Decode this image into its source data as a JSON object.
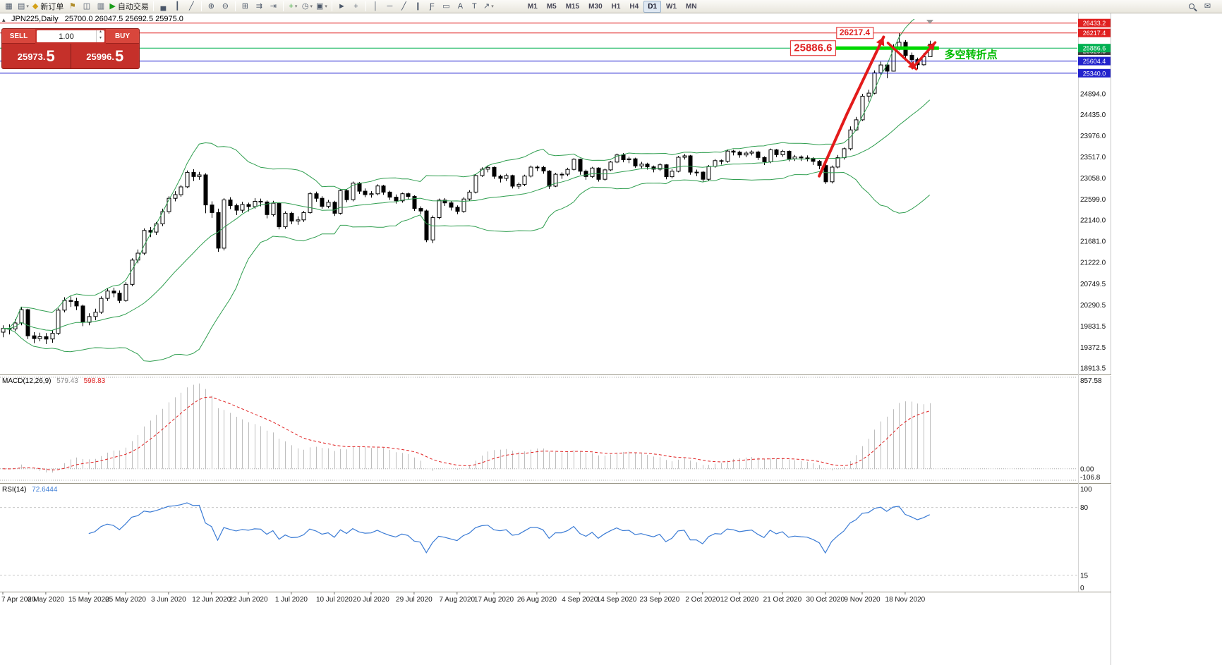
{
  "toolbar": {
    "icons": [
      {
        "name": "new-chart-icon"
      },
      {
        "name": "profiles-icon",
        "dropdown": true
      },
      {
        "name": "new-order-button",
        "label": "新订单"
      },
      {
        "name": "alerts-icon"
      },
      {
        "name": "market-watch-icon"
      },
      {
        "name": "data-window-icon"
      },
      {
        "name": "autotrade-button",
        "label": "自动交易"
      },
      {
        "name": "sep"
      },
      {
        "name": "bar-chart-icon"
      },
      {
        "name": "candlestick-chart-icon"
      },
      {
        "name": "line-chart-icon"
      },
      {
        "name": "sep"
      },
      {
        "name": "zoom-in-icon"
      },
      {
        "name": "zoom-out-icon"
      },
      {
        "name": "sep"
      },
      {
        "name": "tile-windows-icon"
      },
      {
        "name": "auto-scroll-icon"
      },
      {
        "name": "chart-shift-icon"
      },
      {
        "name": "sep"
      },
      {
        "name": "indicators-icon",
        "dropdown": true
      },
      {
        "name": "periods-icon",
        "dropdown": true
      },
      {
        "name": "templates-icon",
        "dropdown": true
      },
      {
        "name": "sep"
      },
      {
        "name": "cursor-icon"
      },
      {
        "name": "crosshair-icon"
      },
      {
        "name": "sep"
      },
      {
        "name": "vertical-line-icon"
      },
      {
        "name": "horizontal-line-icon"
      },
      {
        "name": "trendline-icon"
      },
      {
        "name": "channel-icon"
      },
      {
        "name": "fibonacci-icon"
      },
      {
        "name": "shapes-icon"
      },
      {
        "name": "text-icon"
      },
      {
        "name": "text-label-icon"
      },
      {
        "name": "arrows-icon",
        "dropdown": true
      }
    ],
    "right_icons": [
      "search-icon",
      "community-icon"
    ],
    "timeframes": [
      "M1",
      "M5",
      "M15",
      "M30",
      "H1",
      "H4",
      "D1",
      "W1",
      "MN"
    ],
    "active_timeframe": "D1"
  },
  "trade_panel": {
    "sell_label": "SELL",
    "buy_label": "BUY",
    "volume": "1.00",
    "sell_price": "25973.5",
    "buy_price": "25996.5"
  },
  "chart_data": {
    "type": "candlestick",
    "symbol_period": "JPN225,Daily",
    "ohlc_line": "25700.0 26047.5 25692.5 25975.0",
    "ylim": [
      18840,
      26520
    ],
    "price_axis_labels": [
      "24894.0",
      "24435.0",
      "23976.0",
      "23517.0",
      "23058.0",
      "22599.0",
      "22140.0",
      "21681.0",
      "21222.0",
      "20749.5",
      "20290.5",
      "19831.5",
      "19372.5",
      "18913.5"
    ],
    "x_axis": [
      {
        "label": "7 Apr 2020",
        "i": 0
      },
      {
        "label": "6 May 2020",
        "i": 7
      },
      {
        "label": "15 May 2020",
        "i": 14
      },
      {
        "label": "25 May 2020",
        "i": 20
      },
      {
        "label": "3 Jun 2020",
        "i": 27
      },
      {
        "label": "12 Jun 2020",
        "i": 34
      },
      {
        "label": "22 Jun 2020",
        "i": 40
      },
      {
        "label": "1 Jul 2020",
        "i": 47
      },
      {
        "label": "10 Jul 2020",
        "i": 54
      },
      {
        "label": "20 Jul 2020",
        "i": 60
      },
      {
        "label": "29 Jul 2020",
        "i": 67
      },
      {
        "label": "7 Aug 2020",
        "i": 74
      },
      {
        "label": "17 Aug 2020",
        "i": 80
      },
      {
        "label": "26 Aug 2020",
        "i": 87
      },
      {
        "label": "4 Sep 2020",
        "i": 94
      },
      {
        "label": "14 Sep 2020",
        "i": 100
      },
      {
        "label": "23 Sep 2020",
        "i": 107
      },
      {
        "label": "2 Oct 2020",
        "i": 114
      },
      {
        "label": "12 Oct 2020",
        "i": 120
      },
      {
        "label": "21 Oct 2020",
        "i": 127
      },
      {
        "label": "30 Oct 2020",
        "i": 134
      },
      {
        "label": "9 Nov 2020",
        "i": 140
      },
      {
        "label": "18 Nov 2020",
        "i": 147
      }
    ],
    "candles": [
      [
        19700,
        19850,
        19590,
        19780
      ],
      [
        19780,
        19870,
        19650,
        19770
      ],
      [
        19770,
        19980,
        19720,
        19900
      ],
      [
        19900,
        20250,
        19850,
        20190
      ],
      [
        20190,
        20210,
        19550,
        19620
      ],
      [
        19620,
        19700,
        19460,
        19560
      ],
      [
        19560,
        19690,
        19500,
        19600
      ],
      [
        19600,
        19680,
        19440,
        19550
      ],
      [
        19550,
        19740,
        19470,
        19675
      ],
      [
        19675,
        20220,
        19640,
        20180
      ],
      [
        20180,
        20460,
        20130,
        20390
      ],
      [
        20390,
        20480,
        20250,
        20370
      ],
      [
        20370,
        20450,
        20180,
        20270
      ],
      [
        20270,
        20300,
        19830,
        19915
      ],
      [
        19915,
        20110,
        19850,
        20040
      ],
      [
        20040,
        20210,
        19960,
        20135
      ],
      [
        20135,
        20480,
        20100,
        20435
      ],
      [
        20435,
        20650,
        20380,
        20595
      ],
      [
        20595,
        20670,
        20460,
        20550
      ],
      [
        20550,
        20610,
        20330,
        20390
      ],
      [
        20390,
        20790,
        20360,
        20740
      ],
      [
        20740,
        21310,
        20700,
        21270
      ],
      [
        21270,
        21500,
        21200,
        21420
      ],
      [
        21420,
        21960,
        21380,
        21915
      ],
      [
        21915,
        21990,
        21770,
        21880
      ],
      [
        21880,
        22100,
        21820,
        22060
      ],
      [
        22060,
        22390,
        22010,
        22325
      ],
      [
        22325,
        22660,
        22280,
        22615
      ],
      [
        22615,
        22770,
        22550,
        22695
      ],
      [
        22695,
        22905,
        22650,
        22865
      ],
      [
        22865,
        23220,
        22840,
        23180
      ],
      [
        23180,
        23250,
        22990,
        23090
      ],
      [
        23090,
        23190,
        23020,
        23125
      ],
      [
        23125,
        23160,
        22290,
        22470
      ],
      [
        22470,
        22550,
        22190,
        22305
      ],
      [
        22305,
        22390,
        21450,
        21530
      ],
      [
        21530,
        22620,
        21480,
        22580
      ],
      [
        22580,
        22640,
        22380,
        22455
      ],
      [
        22455,
        22500,
        22250,
        22355
      ],
      [
        22355,
        22540,
        22300,
        22480
      ],
      [
        22480,
        22520,
        22330,
        22435
      ],
      [
        22435,
        22620,
        22390,
        22550
      ],
      [
        22550,
        22610,
        22440,
        22535
      ],
      [
        22535,
        22570,
        22180,
        22260
      ],
      [
        22260,
        22560,
        22220,
        22510
      ],
      [
        22510,
        22530,
        21940,
        21995
      ],
      [
        21995,
        22330,
        21950,
        22290
      ],
      [
        22290,
        22320,
        22050,
        22120
      ],
      [
        22120,
        22220,
        22040,
        22145
      ],
      [
        22145,
        22340,
        22100,
        22305
      ],
      [
        22305,
        22750,
        22280,
        22715
      ],
      [
        22715,
        22760,
        22540,
        22615
      ],
      [
        22615,
        22660,
        22390,
        22440
      ],
      [
        22440,
        22580,
        22400,
        22530
      ],
      [
        22530,
        22560,
        22230,
        22290
      ],
      [
        22290,
        22820,
        22260,
        22785
      ],
      [
        22785,
        22810,
        22530,
        22585
      ],
      [
        22585,
        22980,
        22550,
        22945
      ],
      [
        22945,
        22970,
        22710,
        22770
      ],
      [
        22770,
        22830,
        22640,
        22695
      ],
      [
        22695,
        22770,
        22630,
        22715
      ],
      [
        22715,
        22920,
        22680,
        22885
      ],
      [
        22885,
        22910,
        22690,
        22750
      ],
      [
        22750,
        22780,
        22580,
        22640
      ],
      [
        22640,
        22700,
        22500,
        22560
      ],
      [
        22560,
        22740,
        22520,
        22715
      ],
      [
        22715,
        22740,
        22590,
        22655
      ],
      [
        22655,
        22680,
        22340,
        22395
      ],
      [
        22395,
        22440,
        22270,
        22340
      ],
      [
        22340,
        22370,
        21660,
        21710
      ],
      [
        21710,
        22240,
        21640,
        22195
      ],
      [
        22195,
        22610,
        22160,
        22575
      ],
      [
        22575,
        22620,
        22450,
        22515
      ],
      [
        22515,
        22560,
        22350,
        22420
      ],
      [
        22420,
        22460,
        22270,
        22330
      ],
      [
        22330,
        22640,
        22300,
        22600
      ],
      [
        22600,
        22790,
        22560,
        22750
      ],
      [
        22750,
        23140,
        22720,
        23110
      ],
      [
        23110,
        23290,
        23080,
        23250
      ],
      [
        23250,
        23330,
        23180,
        23290
      ],
      [
        23290,
        23310,
        23040,
        23095
      ],
      [
        23095,
        23130,
        22960,
        23050
      ],
      [
        23050,
        23150,
        22990,
        23110
      ],
      [
        23110,
        23130,
        22830,
        22880
      ],
      [
        22880,
        22960,
        22820,
        22920
      ],
      [
        22920,
        23130,
        22880,
        23100
      ],
      [
        23100,
        23330,
        23070,
        23295
      ],
      [
        23295,
        23330,
        23210,
        23290
      ],
      [
        23290,
        23320,
        23150,
        23210
      ],
      [
        23210,
        23230,
        22820,
        22880
      ],
      [
        22880,
        23170,
        22860,
        23140
      ],
      [
        23140,
        23180,
        23040,
        23140
      ],
      [
        23140,
        23280,
        23100,
        23245
      ],
      [
        23245,
        23490,
        23220,
        23465
      ],
      [
        23465,
        23480,
        23130,
        23205
      ],
      [
        23205,
        23240,
        23020,
        23090
      ],
      [
        23090,
        23300,
        23060,
        23275
      ],
      [
        23275,
        23290,
        22980,
        23030
      ],
      [
        23030,
        23260,
        23000,
        23235
      ],
      [
        23235,
        23430,
        23210,
        23405
      ],
      [
        23405,
        23590,
        23380,
        23560
      ],
      [
        23560,
        23600,
        23400,
        23455
      ],
      [
        23455,
        23520,
        23380,
        23475
      ],
      [
        23475,
        23500,
        23280,
        23320
      ],
      [
        23320,
        23410,
        23270,
        23360
      ],
      [
        23360,
        23390,
        23240,
        23300
      ],
      [
        23300,
        23330,
        23180,
        23250
      ],
      [
        23250,
        23380,
        23210,
        23345
      ],
      [
        23345,
        23360,
        23030,
        23085
      ],
      [
        23085,
        23250,
        23050,
        23205
      ],
      [
        23205,
        23540,
        23180,
        23510
      ],
      [
        23510,
        23580,
        23460,
        23540
      ],
      [
        23540,
        23560,
        23130,
        23185
      ],
      [
        23185,
        23240,
        23100,
        23185
      ],
      [
        23185,
        23210,
        22970,
        23030
      ],
      [
        23030,
        23340,
        23000,
        23310
      ],
      [
        23310,
        23470,
        23280,
        23435
      ],
      [
        23435,
        23460,
        23350,
        23420
      ],
      [
        23420,
        23680,
        23390,
        23645
      ],
      [
        23645,
        23670,
        23550,
        23620
      ],
      [
        23620,
        23650,
        23500,
        23560
      ],
      [
        23560,
        23640,
        23510,
        23600
      ],
      [
        23600,
        23660,
        23550,
        23625
      ],
      [
        23625,
        23650,
        23450,
        23505
      ],
      [
        23505,
        23530,
        23340,
        23410
      ],
      [
        23410,
        23700,
        23380,
        23670
      ],
      [
        23670,
        23690,
        23510,
        23565
      ],
      [
        23565,
        23670,
        23520,
        23640
      ],
      [
        23640,
        23660,
        23420,
        23475
      ],
      [
        23475,
        23560,
        23430,
        23515
      ],
      [
        23515,
        23550,
        23430,
        23495
      ],
      [
        23495,
        23550,
        23420,
        23485
      ],
      [
        23485,
        23510,
        23340,
        23420
      ],
      [
        23420,
        23450,
        23250,
        23330
      ],
      [
        23330,
        23360,
        22930,
        22975
      ],
      [
        22975,
        23330,
        22940,
        23295
      ],
      [
        23295,
        23560,
        23270,
        23500
      ],
      [
        23500,
        23720,
        23460,
        23695
      ],
      [
        23695,
        24180,
        23660,
        24105
      ],
      [
        24105,
        24390,
        24080,
        24325
      ],
      [
        24325,
        24890,
        24300,
        24840
      ],
      [
        24840,
        24980,
        24720,
        24905
      ],
      [
        24905,
        25400,
        24880,
        25350
      ],
      [
        25350,
        25590,
        25300,
        25520
      ],
      [
        25520,
        25560,
        25230,
        25385
      ],
      [
        25385,
        25970,
        25380,
        25905
      ],
      [
        25905,
        26220,
        25840,
        26015
      ],
      [
        26015,
        26060,
        25640,
        25730
      ],
      [
        25730,
        25790,
        25460,
        25635
      ],
      [
        25635,
        25680,
        25425,
        25525
      ],
      [
        25525,
        25780,
        25500,
        25700
      ],
      [
        25700,
        26047.5,
        25692.5,
        25975
      ]
    ],
    "bollinger": {
      "period": 20,
      "deviation": 2,
      "color": "#2f9e4f"
    },
    "levels": [
      {
        "price": 26433.2,
        "color": "#e02020",
        "width": 1
      },
      {
        "price": 26217.4,
        "color": "#e02020",
        "width": 1
      },
      {
        "price": 25886.6,
        "color": "#00b050",
        "width": 1
      },
      {
        "price": 25604.4,
        "color": "#1515cd",
        "width": 1
      },
      {
        "price": 25340.0,
        "color": "#1515cd",
        "width": 1
      }
    ],
    "segments": [
      {
        "price": 25886.6,
        "i1": 135.5,
        "i2": 152.5,
        "color": "#00d800",
        "width": 5
      }
    ],
    "tags": [
      {
        "label": "26433.2",
        "price": 26433.2,
        "bg": "#e02020"
      },
      {
        "label": "26217.4",
        "price": 26217.4,
        "bg": "#e02020"
      },
      {
        "label": "25829.5",
        "price": 25829.5,
        "bg": "#404040"
      },
      {
        "label": "25886.6",
        "price": 25886.6,
        "bg": "#00b050"
      },
      {
        "label": "25604.4",
        "price": 25604.4,
        "bg": "#2222cc"
      },
      {
        "label": "25340.0",
        "price": 25340.0,
        "bg": "#2222cc"
      }
    ],
    "arrows": [
      {
        "pts": [
          {
            "i": 133,
            "p": 23100
          },
          {
            "i": 137.5,
            "p": 24450
          },
          {
            "i": 143.5,
            "p": 26130
          }
        ],
        "width": 4
      },
      {
        "pts": [
          {
            "i": 144.2,
            "p": 26000
          },
          {
            "i": 148.8,
            "p": 25430
          }
        ],
        "width": 3.5
      },
      {
        "pts": [
          {
            "i": 148.2,
            "p": 25450
          },
          {
            "i": 151.9,
            "p": 26010
          }
        ],
        "width": 3.5
      }
    ],
    "arrow_color": "#e31b1b",
    "float_labels": [
      {
        "text": "26217.4",
        "i": 138.8,
        "p": 26217.4,
        "size": 12
      },
      {
        "text": "25886.6",
        "i": 132,
        "p": 25886.6,
        "size": 15
      }
    ],
    "text_annotations": [
      {
        "text": "多空转折点",
        "i": 153.4,
        "p": 25755,
        "color": "#00bb00",
        "size": 15
      }
    ],
    "macd": {
      "label": "MACD(12,26,9)",
      "value_main": "579.43",
      "value_signal": "598.83",
      "ylim": [
        -106.8,
        857.58
      ],
      "axis_labels": [
        "857.58",
        "0.00",
        "-106.8"
      ],
      "hist_color": "#bdbdbd",
      "signal_color": "#e02020"
    },
    "rsi": {
      "label": "RSI(14)",
      "value": "72.6444",
      "period": 14,
      "levels": [
        80,
        15
      ],
      "axis_labels": [
        "100",
        "80",
        "15",
        "0"
      ],
      "color": "#3a7bd5"
    }
  }
}
